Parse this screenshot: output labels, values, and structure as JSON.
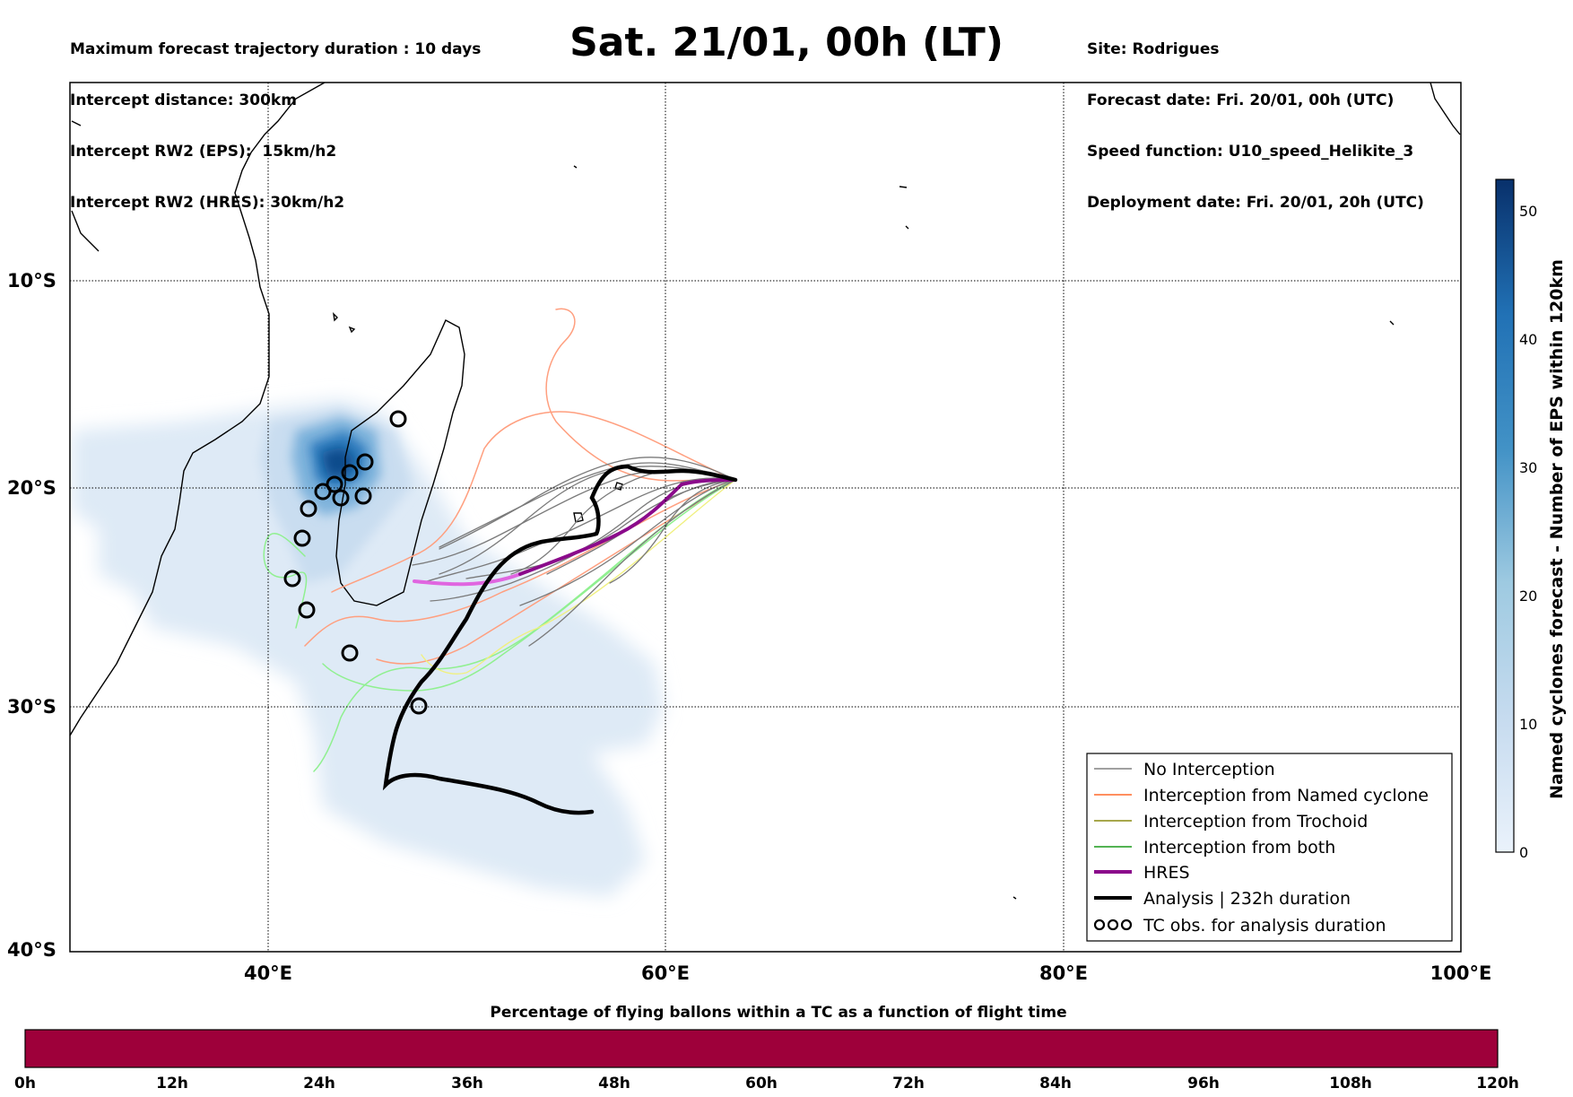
{
  "header_left": [
    "Maximum forecast trajectory duration : 10 days",
    "Intercept distance: 300km",
    "Intercept RW2 (EPS):  15km/h2",
    "Intercept RW2 (HRES): 30km/h2"
  ],
  "title": "Sat. 21/01, 00h (LT)",
  "header_right": [
    "Site: Rodrigues",
    "Forecast date: Fri. 20/01, 00h (UTC)",
    "Speed function: U10_speed_Helikite_3",
    "Deployment date: Fri. 20/01, 20h (UTC)"
  ],
  "map": {
    "lon_labels": [
      "40°E",
      "60°E",
      "80°E",
      "100°E"
    ],
    "lat_labels": [
      "10°S",
      "20°S",
      "30°S",
      "40°S"
    ],
    "lon_range": [
      30,
      100
    ],
    "lat_range": [
      -40,
      1
    ]
  },
  "legend": {
    "items": [
      {
        "label": "No Interception",
        "color": "#808080",
        "kind": "thin"
      },
      {
        "label": "Interception from Named cyclone",
        "color": "#ff6a2a",
        "kind": "thin"
      },
      {
        "label": "Interception from Trochoid",
        "color": "#8a8a10",
        "kind": "thin"
      },
      {
        "label": "Interception from both",
        "color": "#1a9a1a",
        "kind": "thin"
      },
      {
        "label": "HRES",
        "color": "#8b0a8b",
        "kind": "thick"
      },
      {
        "label": "Analysis | 232h duration",
        "color": "#000000",
        "kind": "thick"
      },
      {
        "label": "TC obs. for analysis duration",
        "color": "#000000",
        "kind": "cyclone"
      }
    ]
  },
  "colorbar_right": {
    "label": "Named cyclones forecast - Number of EPS within 120km",
    "ticks": [
      "0",
      "10",
      "20",
      "30",
      "40",
      "50"
    ],
    "colors": [
      "#e8f1fa",
      "#08306b"
    ]
  },
  "colorbar_bottom": {
    "title": "Percentage of flying ballons within a TC as a function of flight time",
    "ticks": [
      "0h",
      "12h",
      "24h",
      "36h",
      "48h",
      "60h",
      "72h",
      "84h",
      "96h",
      "108h",
      "120h"
    ],
    "color": "#9e003a"
  }
}
